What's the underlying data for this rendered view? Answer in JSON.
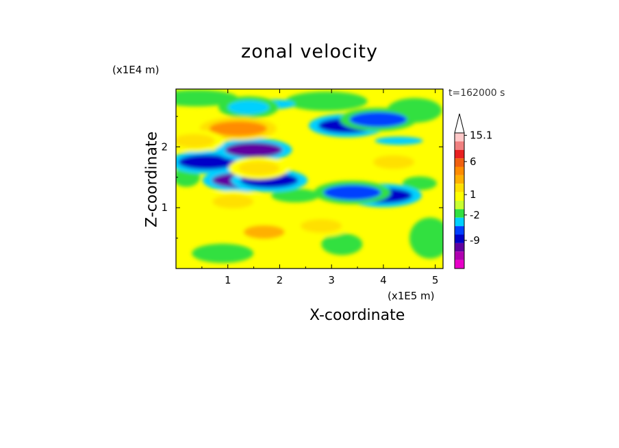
{
  "chart_data": {
    "type": "heatmap",
    "title": "zonal velocity",
    "xlabel": "X-coordinate",
    "ylabel": "Z-coordinate",
    "x_unit_label": "(x1E5 m)",
    "y_unit_label": "(x1E4 m)",
    "time_label": "t=162000 s",
    "xlim": [
      0,
      5.15
    ],
    "ylim": [
      0,
      2.95
    ],
    "x_ticks": [
      "1",
      "2",
      "3",
      "4",
      "5"
    ],
    "y_ticks": [
      "1",
      "2"
    ],
    "colorbar": {
      "labels": [
        "15.1",
        "6",
        "1",
        "-2",
        "-9"
      ],
      "colors": [
        "#ffc8c8",
        "#f08080",
        "#e82020",
        "#f06010",
        "#ff8c00",
        "#ffb000",
        "#ffe000",
        "#ffff00",
        "#c8ff30",
        "#30e040",
        "#00d0ff",
        "#0040ff",
        "#0000c8",
        "#6000a0",
        "#b000b0",
        "#e800c8"
      ],
      "extend_top": true
    },
    "features": [
      {
        "x": 0.6,
        "z": 1.75,
        "value": -8
      },
      {
        "x": 1.5,
        "z": 1.95,
        "value": -9
      },
      {
        "x": 1.25,
        "z": 1.45,
        "value": -9
      },
      {
        "x": 1.8,
        "z": 1.45,
        "value": -8
      },
      {
        "x": 3.3,
        "z": 2.35,
        "value": -7
      },
      {
        "x": 3.9,
        "z": 2.45,
        "value": -6
      },
      {
        "x": 4.0,
        "z": 1.2,
        "value": -8
      },
      {
        "x": 3.4,
        "z": 1.25,
        "value": -6
      },
      {
        "x": 1.4,
        "z": 2.65,
        "value": -4
      },
      {
        "x": 1.2,
        "z": 2.3,
        "value": 7
      },
      {
        "x": 0.35,
        "z": 2.1,
        "value": 4
      },
      {
        "x": 4.2,
        "z": 1.75,
        "value": 4
      },
      {
        "x": 1.6,
        "z": 1.65,
        "value": 3
      },
      {
        "x": 1.7,
        "z": 0.6,
        "value": 5
      },
      {
        "x": 2.8,
        "z": 0.7,
        "value": 4
      },
      {
        "x": 1.1,
        "z": 1.1,
        "value": 3
      }
    ]
  }
}
